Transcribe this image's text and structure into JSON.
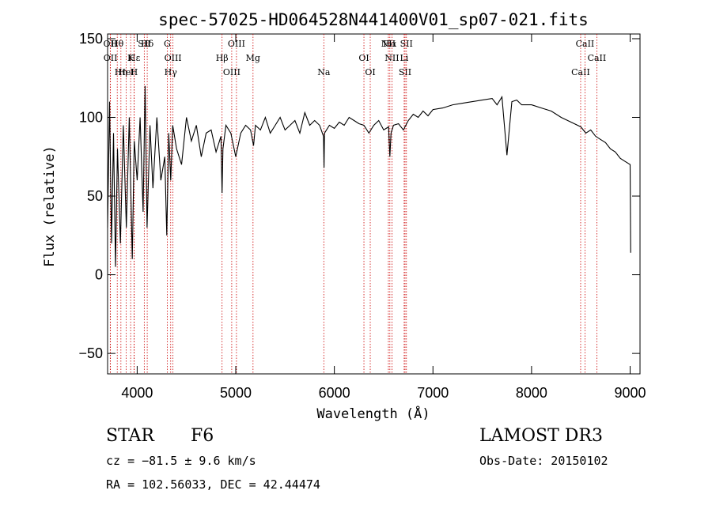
{
  "chart_data": {
    "type": "line",
    "title": "spec-57025-HD064528N441400V01_sp07-021.fits",
    "xlabel": "Wavelength (Å)",
    "ylabel": "Flux (relative)",
    "xlim": [
      3700,
      9100
    ],
    "ylim": [
      -63,
      153
    ],
    "xticks": [
      "4000",
      "5000",
      "6000",
      "7000",
      "8000",
      "9000"
    ],
    "yticks": [
      "−50",
      "0",
      "50",
      "100",
      "150"
    ],
    "xtick_values": [
      4000,
      5000,
      6000,
      7000,
      8000,
      9000
    ],
    "ytick_values": [
      -50,
      0,
      50,
      100,
      150
    ],
    "grid": false,
    "series": [
      {
        "x": [
          3700,
          3720,
          3740,
          3760,
          3780,
          3800,
          3830,
          3860,
          3890,
          3920,
          3950,
          3970,
          4000,
          4030,
          4060,
          4080,
          4100,
          4130,
          4160,
          4200,
          4240,
          4280,
          4300,
          4320,
          4340,
          4360,
          4400,
          4450,
          4500,
          4550,
          4600,
          4650,
          4700,
          4750,
          4800,
          4850,
          4861,
          4870,
          4900,
          4950,
          5000,
          5050,
          5100,
          5150,
          5180,
          5200,
          5250,
          5300,
          5350,
          5400,
          5450,
          5500,
          5550,
          5600,
          5650,
          5700,
          5750,
          5800,
          5850,
          5890,
          5895,
          5900,
          5950,
          6000,
          6050,
          6100,
          6150,
          6200,
          6250,
          6300,
          6350,
          6400,
          6450,
          6500,
          6550,
          6563,
          6575,
          6600,
          6650,
          6700,
          6750,
          6800,
          6850,
          6900,
          6950,
          7000,
          7100,
          7200,
          7300,
          7400,
          7500,
          7600,
          7650,
          7700,
          7750,
          7800,
          7850,
          7900,
          8000,
          8100,
          8200,
          8300,
          8400,
          8500,
          8550,
          8600,
          8650,
          8700,
          8750,
          8800,
          8850,
          8900,
          8950,
          9000,
          9005
        ],
        "y": [
          30,
          110,
          20,
          90,
          5,
          80,
          20,
          95,
          30,
          100,
          10,
          85,
          60,
          100,
          40,
          120,
          30,
          95,
          55,
          100,
          60,
          75,
          25,
          90,
          60,
          95,
          80,
          70,
          100,
          85,
          95,
          75,
          90,
          92,
          78,
          88,
          52,
          80,
          95,
          90,
          75,
          90,
          95,
          92,
          82,
          95,
          92,
          100,
          90,
          95,
          100,
          92,
          95,
          98,
          90,
          103,
          95,
          98,
          95,
          88,
          68,
          90,
          95,
          93,
          97,
          95,
          100,
          98,
          96,
          95,
          90,
          95,
          98,
          92,
          94,
          75,
          90,
          95,
          96,
          92,
          98,
          102,
          100,
          104,
          101,
          105,
          106,
          108,
          109,
          110,
          111,
          112,
          108,
          113,
          76,
          110,
          111,
          108,
          108,
          106,
          104,
          100,
          97,
          94,
          90,
          92,
          88,
          86,
          84,
          80,
          78,
          74,
          72,
          70,
          14
        ]
      }
    ],
    "line_marks": [
      {
        "label": "Hα",
        "wavelength": 6563
      },
      {
        "label": "Hβ",
        "wavelength": 4861
      },
      {
        "label": "Hγ",
        "wavelength": 4340
      },
      {
        "label": "Hδ",
        "wavelength": 4102
      },
      {
        "label": "Hε",
        "wavelength": 3970
      },
      {
        "label": "Hη",
        "wavelength": 3835
      },
      {
        "label": "Hθ",
        "wavelength": 3798
      },
      {
        "label": "K",
        "wavelength": 3934
      },
      {
        "label": "H",
        "wavelength": 3968
      },
      {
        "label": "G",
        "wavelength": 4305
      },
      {
        "label": "Mg",
        "wavelength": 5175
      },
      {
        "label": "Na",
        "wavelength": 5893
      },
      {
        "label": "OII",
        "wavelength": 3727
      },
      {
        "label": "OII",
        "wavelength": 3729
      },
      {
        "label": "HeI",
        "wavelength": 3889
      },
      {
        "label": "SII",
        "wavelength": 4072
      },
      {
        "label": "OIII",
        "wavelength": 4363
      },
      {
        "label": "OIII",
        "wavelength": 4959
      },
      {
        "label": "OIII",
        "wavelength": 5007
      },
      {
        "label": "OI",
        "wavelength": 6300
      },
      {
        "label": "OI",
        "wavelength": 6364
      },
      {
        "label": "NII",
        "wavelength": 6548
      },
      {
        "label": "NII",
        "wavelength": 6584
      },
      {
        "label": "SII",
        "wavelength": 6717
      },
      {
        "label": "SII",
        "wavelength": 6731
      },
      {
        "label": "Li",
        "wavelength": 6708
      },
      {
        "label": "CaII",
        "wavelength": 8498
      },
      {
        "label": "CaII",
        "wavelength": 8542
      },
      {
        "label": "CaII",
        "wavelength": 8662
      }
    ]
  },
  "info": {
    "object_type": "STAR",
    "subclass": "F6",
    "survey": "LAMOST DR3",
    "cz": "cz = −81.5 ± 9.6 km/s",
    "obs_date": "Obs-Date: 20150102",
    "coords": "RA = 102.56033, DEC =  42.44474"
  }
}
